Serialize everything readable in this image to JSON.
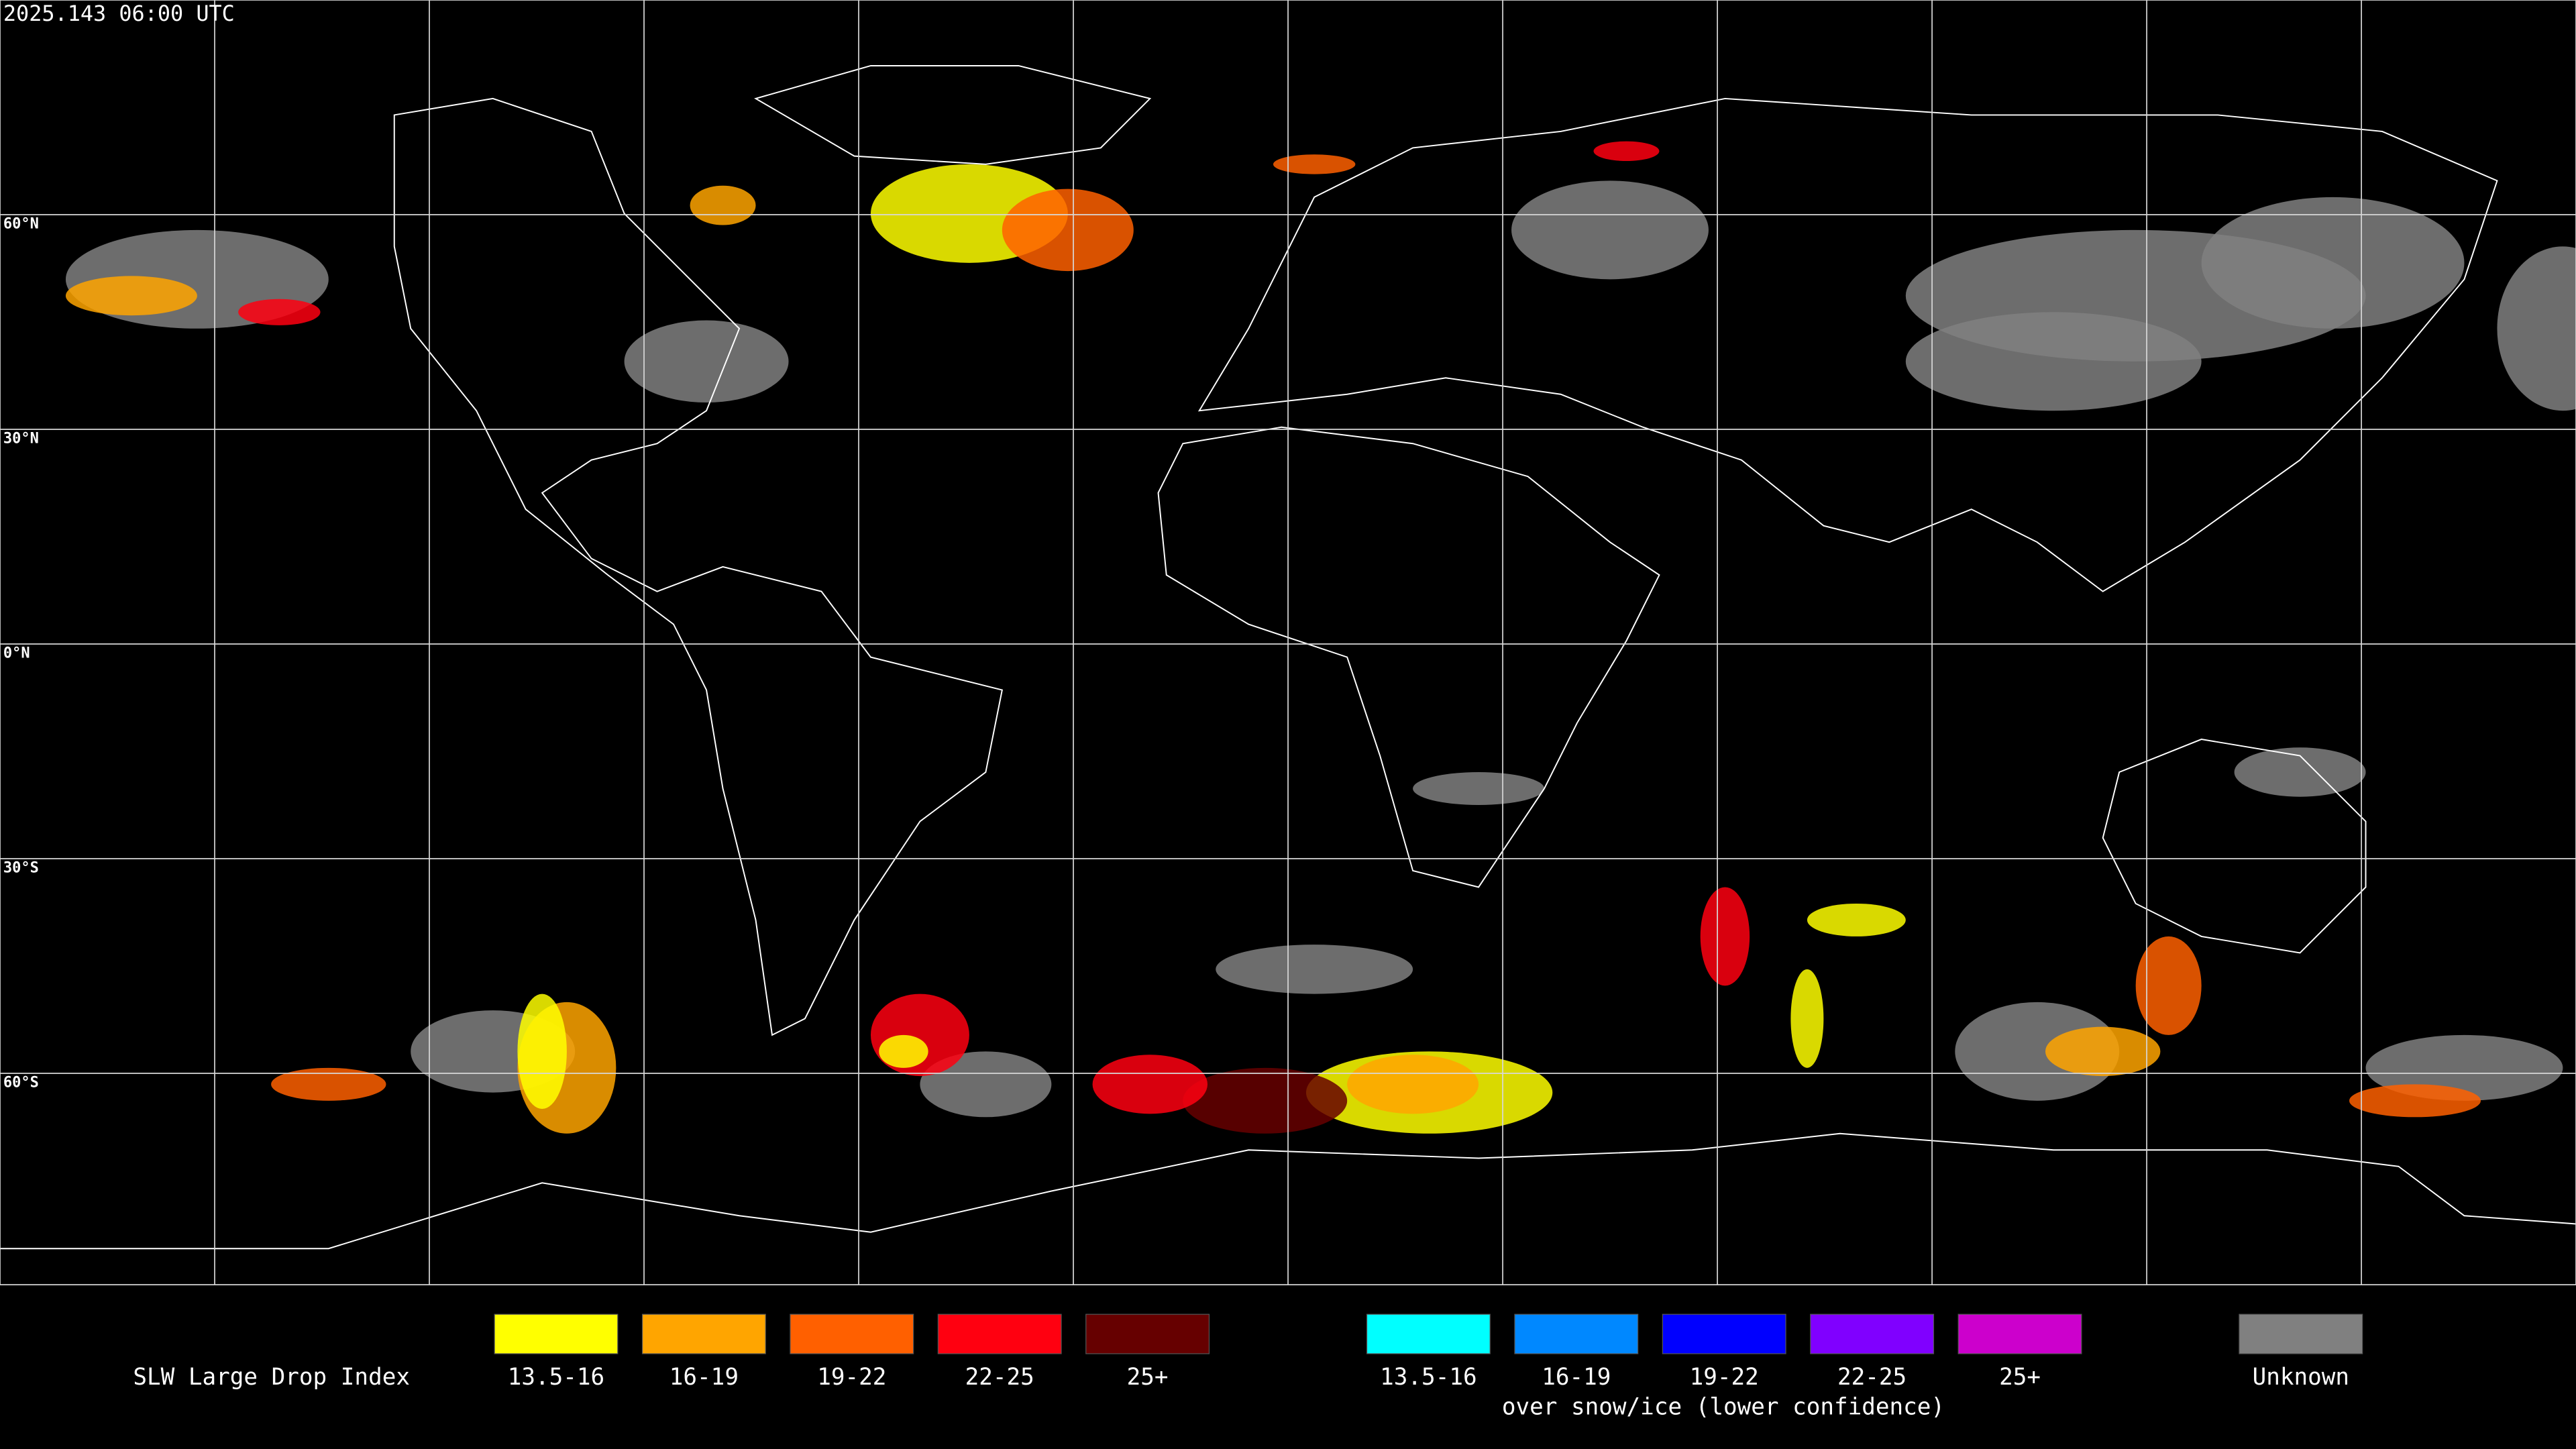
{
  "timestamp": "2025.143 06:00 UTC",
  "latitude_labels": [
    "60°N",
    "30°N",
    "0°N",
    "30°S",
    "60°S"
  ],
  "legend": {
    "title": "SLW Large Drop Index",
    "items": [
      {
        "label": "13.5-16",
        "color": "#ffff00"
      },
      {
        "label": "16-19",
        "color": "#ffa500"
      },
      {
        "label": "19-22",
        "color": "#ff6000"
      },
      {
        "label": "22-25",
        "color": "#ff0010"
      },
      {
        "label": "25+",
        "color": "#660000"
      }
    ],
    "snow_ice_items": [
      {
        "label": "13.5-16",
        "color": "#00ffff"
      },
      {
        "label": "16-19",
        "color": "#0088ff"
      },
      {
        "label": "19-22",
        "color": "#0000ff"
      },
      {
        "label": "22-25",
        "color": "#8000ff"
      },
      {
        "label": "25+",
        "color": "#cc00cc"
      }
    ],
    "snow_ice_caption": "over snow/ice (lower confidence)",
    "unknown": {
      "label": "Unknown",
      "color": "#808080"
    }
  }
}
